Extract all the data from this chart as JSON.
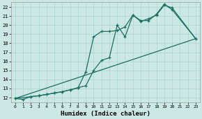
{
  "xlabel": "Humidex (Indice chaleur)",
  "bg_color": "#cce8e4",
  "grid_color": "#aad4cc",
  "line_color": "#1a6e62",
  "xlim": [
    -0.5,
    23.5
  ],
  "ylim": [
    11.5,
    22.5
  ],
  "xticks": [
    0,
    1,
    2,
    3,
    4,
    5,
    6,
    7,
    8,
    9,
    10,
    11,
    12,
    13,
    14,
    15,
    16,
    17,
    18,
    19,
    20,
    21,
    22,
    23
  ],
  "yticks": [
    12,
    13,
    14,
    15,
    16,
    17,
    18,
    19,
    20,
    21,
    22
  ],
  "line1_x": [
    0,
    1,
    2,
    3,
    4,
    5,
    6,
    7,
    8,
    9,
    10,
    11,
    12,
    13,
    14,
    15,
    16,
    17,
    18,
    19,
    20,
    23
  ],
  "line1_y": [
    11.9,
    11.8,
    12.1,
    12.2,
    12.35,
    12.5,
    12.65,
    12.85,
    13.05,
    14.85,
    18.7,
    19.3,
    19.3,
    19.4,
    19.8,
    21.1,
    20.4,
    20.7,
    21.1,
    22.2,
    21.9,
    18.5
  ],
  "line2_x": [
    0,
    2,
    3,
    4,
    5,
    6,
    7,
    8,
    9,
    10,
    11,
    12,
    13,
    14,
    15,
    16,
    17,
    18,
    19,
    20,
    23
  ],
  "line2_y": [
    11.9,
    12.1,
    12.2,
    12.35,
    12.5,
    12.65,
    12.85,
    13.1,
    13.3,
    15.0,
    16.1,
    16.4,
    20.0,
    18.7,
    21.1,
    20.5,
    20.5,
    21.2,
    22.3,
    21.7,
    18.5
  ],
  "line3_x": [
    0,
    23
  ],
  "line3_y": [
    11.9,
    18.5
  ]
}
